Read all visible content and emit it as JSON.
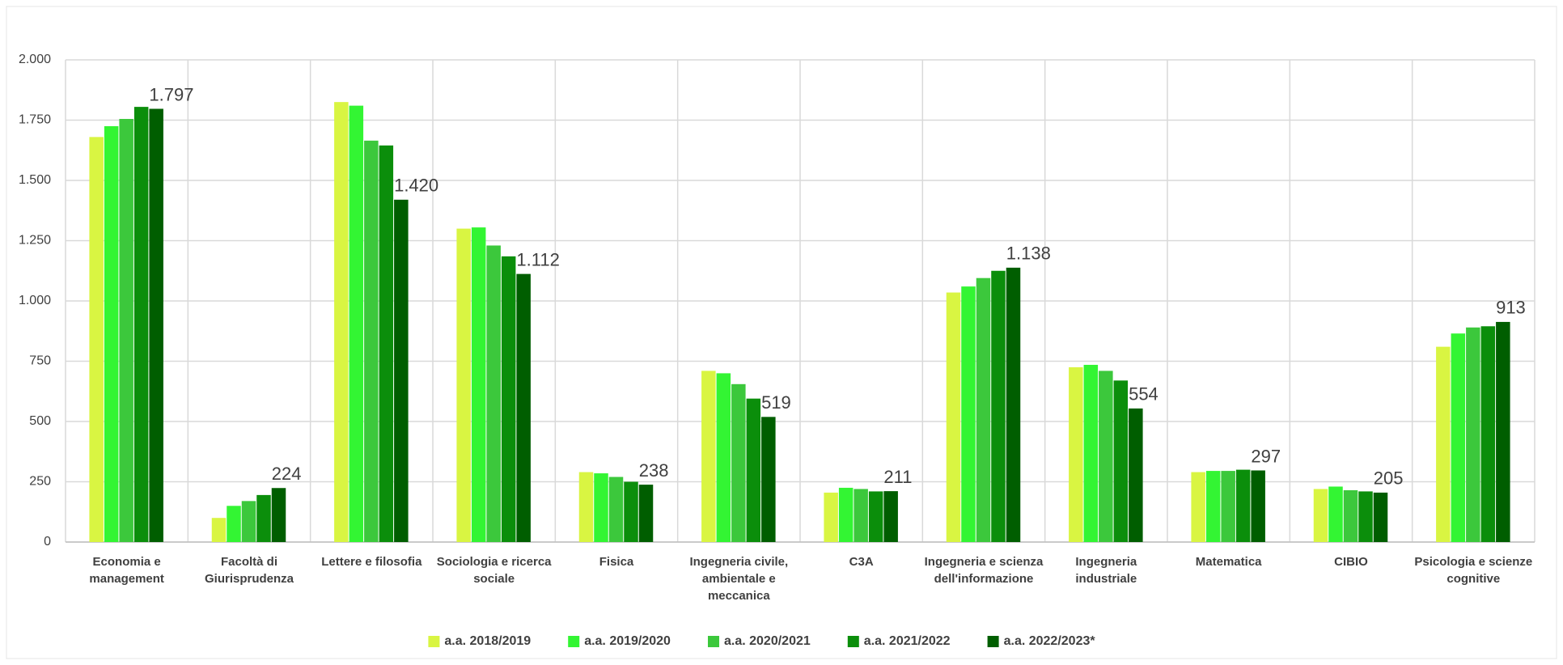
{
  "chart_data": {
    "type": "bar",
    "categories": [
      "Economia e management",
      "Facoltà di Giurisprudenza",
      "Lettere e filosofia",
      "Sociologia e ricerca sociale",
      "Fisica",
      "Ingegneria civile, ambientale e meccanica",
      "C3A",
      "Ingegneria e scienza dell'informazione",
      "Ingegneria industriale",
      "Matematica",
      "CIBIO",
      "Psicologia e scienze cognitive"
    ],
    "series": [
      {
        "name": "a.a. 2018/2019",
        "color": "#d9f542",
        "values": [
          1680,
          100,
          1825,
          1300,
          290,
          710,
          205,
          1035,
          725,
          290,
          220,
          810
        ]
      },
      {
        "name": "a.a. 2019/2020",
        "color": "#33f533",
        "values": [
          1725,
          150,
          1810,
          1305,
          285,
          700,
          225,
          1060,
          735,
          295,
          230,
          865
        ]
      },
      {
        "name": "a.a. 2020/2021",
        "color": "#3cc83c",
        "values": [
          1755,
          170,
          1665,
          1230,
          270,
          655,
          220,
          1095,
          710,
          295,
          215,
          890
        ]
      },
      {
        "name": "a.a. 2021/2022",
        "color": "#0b8e0b",
        "values": [
          1805,
          195,
          1645,
          1185,
          250,
          595,
          210,
          1125,
          670,
          300,
          210,
          895
        ]
      },
      {
        "name": "a.a. 2022/2023*",
        "color": "#005e00",
        "values": [
          1797,
          224,
          1420,
          1112,
          238,
          519,
          211,
          1138,
          554,
          297,
          205,
          913
        ],
        "value_labels": [
          "1.797",
          "224",
          "1.420",
          "1.112",
          "238",
          "519",
          "211",
          "1.138",
          "554",
          "297",
          "205",
          "913"
        ]
      }
    ],
    "ylim": [
      0,
      2000
    ],
    "yticks": [
      0,
      250,
      500,
      750,
      {
        "value": 1000,
        "label": "1.000"
      },
      {
        "value": 1250,
        "label": "1.250"
      },
      {
        "value": 1500,
        "label": "1.500"
      },
      {
        "value": 1750,
        "label": "1.750"
      },
      {
        "value": 2000,
        "label": "2.000"
      }
    ],
    "grid": true,
    "legend": "bottom"
  }
}
